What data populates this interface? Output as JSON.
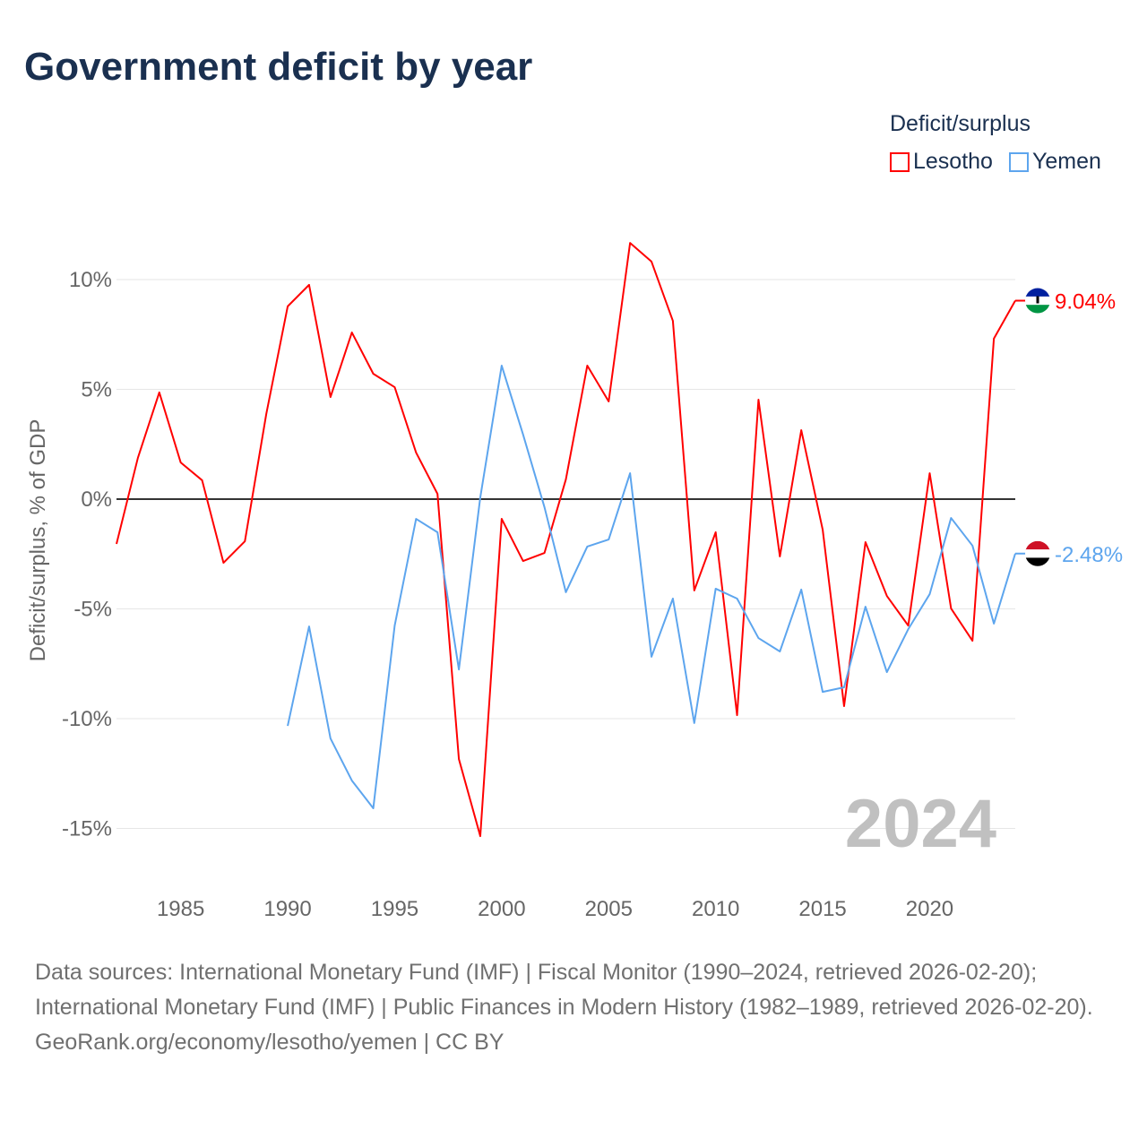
{
  "title": "Government deficit by year",
  "legend": {
    "title": "Deficit/surplus",
    "items": [
      {
        "label": "Lesotho",
        "color": "#ff0000"
      },
      {
        "label": "Yemen",
        "color": "#5da5ee"
      }
    ]
  },
  "chart_data": {
    "type": "line",
    "title": "Government deficit by year",
    "xlabel": "",
    "ylabel": "Deficit/surplus, % of GDP",
    "xlim": [
      1982,
      2024
    ],
    "ylim": [
      -17,
      13
    ],
    "x_ticks": [
      1985,
      1990,
      1995,
      2000,
      2005,
      2010,
      2015,
      2020
    ],
    "x_tick_labels": [
      "1985",
      "1990",
      "1995",
      "2000",
      "2005",
      "2010",
      "2015",
      "2020"
    ],
    "y_ticks": [
      10,
      5,
      0,
      -5,
      -10,
      -15
    ],
    "y_tick_labels": [
      "10%",
      "5%",
      "0%",
      "-5%",
      "-10%",
      "-15%"
    ],
    "grid": true,
    "legend_position": "top-right",
    "year_label": "2024",
    "series": [
      {
        "name": "Lesotho",
        "color": "#ff0000",
        "end_label": "9.04%",
        "x": [
          1982,
          1983,
          1984,
          1985,
          1986,
          1987,
          1988,
          1989,
          1990,
          1991,
          1992,
          1993,
          1994,
          1995,
          1996,
          1997,
          1998,
          1999,
          2000,
          2001,
          2002,
          2003,
          2004,
          2005,
          2006,
          2007,
          2008,
          2009,
          2010,
          2011,
          2012,
          2013,
          2014,
          2015,
          2016,
          2017,
          2018,
          2019,
          2020,
          2021,
          2022,
          2023,
          2024
        ],
        "values": [
          -2.04,
          1.88,
          4.86,
          1.67,
          0.86,
          -2.9,
          -1.92,
          3.88,
          8.78,
          9.76,
          4.65,
          7.59,
          5.71,
          5.1,
          2.12,
          0.24,
          -11.84,
          -15.35,
          -0.9,
          -2.82,
          -2.45,
          0.9,
          6.08,
          4.45,
          11.67,
          10.82,
          8.12,
          -4.16,
          -1.51,
          -9.84,
          4.53,
          -2.61,
          3.14,
          -1.39,
          -9.43,
          -1.96,
          -4.41,
          -5.76,
          1.18,
          -4.98,
          -6.45,
          7.31,
          9.04
        ]
      },
      {
        "name": "Yemen",
        "color": "#5da5ee",
        "end_label": "-2.48%",
        "x": [
          1990,
          1991,
          1992,
          1993,
          1994,
          1995,
          1996,
          1997,
          1998,
          1999,
          2000,
          2001,
          2002,
          2003,
          2004,
          2005,
          2006,
          2007,
          2008,
          2009,
          2010,
          2011,
          2012,
          2013,
          2014,
          2015,
          2016,
          2017,
          2018,
          2019,
          2020,
          2021,
          2022,
          2023,
          2024
        ],
        "values": [
          -10.33,
          -5.8,
          -10.9,
          -12.82,
          -14.08,
          -5.76,
          -0.9,
          -1.51,
          -7.76,
          0.08,
          6.08,
          2.94,
          -0.37,
          -4.24,
          -2.16,
          -1.84,
          1.18,
          -7.18,
          -4.53,
          -10.2,
          -4.08,
          -4.53,
          -6.33,
          -6.94,
          -4.12,
          -8.78,
          -8.57,
          -4.9,
          -7.88,
          -5.92,
          -4.33,
          -0.86,
          -2.12,
          -5.67,
          -2.48
        ]
      }
    ]
  },
  "footer": {
    "sources": "Data sources: International Monetary Fund (IMF) | Fiscal Monitor (1990–2024, retrieved 2026-02-20); International Monetary Fund (IMF) | Public Finances in Modern History (1982–1989, retrieved 2026-02-20).",
    "link": "GeoRank.org/economy/lesotho/yemen",
    "license": "CC BY"
  }
}
